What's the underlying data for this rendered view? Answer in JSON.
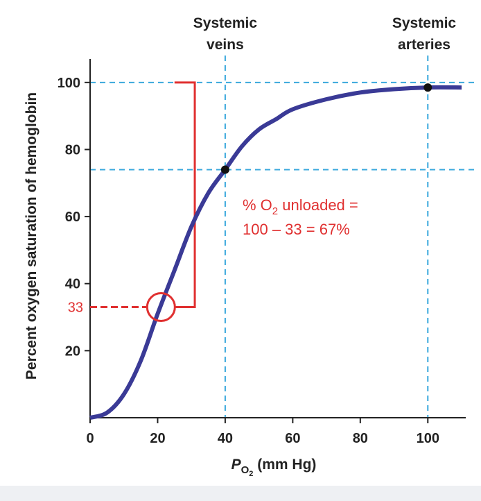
{
  "chart_data": {
    "type": "line",
    "y_label": "Percent oxygen saturation of hemoglobin",
    "x_label": {
      "italic": "P",
      "sub": "O",
      "subsub": "2",
      "rest": " (mm Hg)"
    },
    "x": [
      0,
      5,
      10,
      15,
      20,
      25,
      30,
      35,
      40,
      45,
      50,
      55,
      60,
      70,
      80,
      90,
      100,
      110
    ],
    "values": [
      0,
      1.5,
      7,
      17,
      31,
      44,
      57,
      67,
      74,
      81,
      86,
      89,
      92,
      95,
      97,
      98,
      98.5,
      98.5
    ],
    "color": "#3a3a96",
    "xlim": [
      0,
      110
    ],
    "ylim": [
      0,
      107
    ],
    "xticks": [
      0,
      20,
      40,
      60,
      80,
      100
    ],
    "yticks": [
      20,
      40,
      60,
      80,
      100
    ],
    "ref_color": "#3aa8dc",
    "ref_h": [
      100,
      74
    ],
    "ref_v": [
      40,
      100
    ],
    "points": [
      {
        "x": 40,
        "y": 74
      },
      {
        "x": 100,
        "y": 98.5
      }
    ],
    "annotations": [
      {
        "x": 40,
        "lines": [
          "Systemic",
          "veins"
        ]
      },
      {
        "x": 100,
        "lines": [
          "Systemic",
          "arteries"
        ]
      }
    ],
    "highlight": {
      "color": "#e03030",
      "y": 33,
      "x": 21,
      "bracket_x": 31,
      "bracket_top": 100,
      "bracket_left": 25
    },
    "unloaded": {
      "line1": {
        "a": "% O",
        "sub": "2",
        "b": " unloaded ="
      },
      "line2": "100 – 33 = 67%"
    }
  }
}
